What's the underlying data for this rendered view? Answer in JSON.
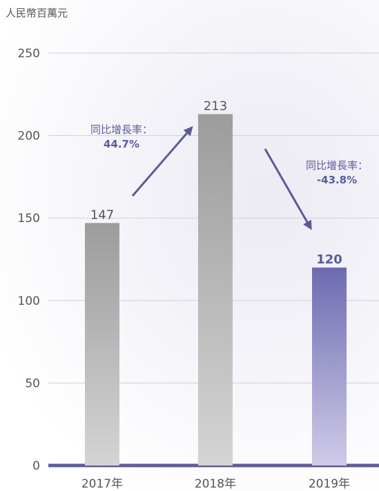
{
  "chart_data": {
    "type": "bar",
    "unit_label": "人民幣百萬元",
    "categories": [
      "2017年",
      "2018年",
      "2019年"
    ],
    "values": [
      147,
      213,
      120
    ],
    "value_labels": [
      "147",
      "213",
      "120"
    ],
    "ylim": [
      0,
      250
    ],
    "yticks": [
      "0",
      "50",
      "100",
      "150",
      "200",
      "250"
    ],
    "grid": true,
    "bar_colors": {
      "default_top": "#9c9c9c",
      "default_bottom": "#d4d4d4",
      "highlight_top": "#6d6bb0",
      "highlight_bottom": "#cfcbe8"
    },
    "annotations": [
      {
        "label": "同比增長率：",
        "value": "44.7%"
      },
      {
        "label": "同比增長率：",
        "value": "-43.8%"
      }
    ],
    "axis_color": "#5f5c97",
    "arrow_color": "#5b5a96"
  }
}
